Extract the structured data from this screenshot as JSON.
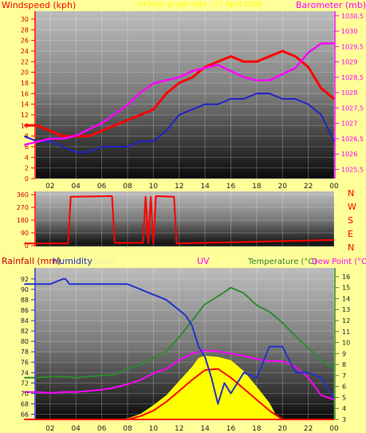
{
  "colors": {
    "background": "#ffff99",
    "wind": "#ff0000",
    "windAvg": "#2222cc",
    "barometer": "#ff00ff",
    "direction": "#ff0000",
    "humidity": "#2233cc",
    "uv": "#ff0000",
    "solar": "#ffff00",
    "temperature": "#2f8a2f",
    "dewpoint": "#ff00ff",
    "rainfall": "#ff0000"
  },
  "top": {
    "left_title": "Windspeed (kph)",
    "right_title": "Barometer (mb)",
    "center_title": "24 hour graph data - 17 April 2009"
  },
  "mid": {
    "dir_labels": [
      "N",
      "W",
      "S",
      "E",
      "N"
    ]
  },
  "bottom": {
    "rainfall_title": "Rainfall (mm)",
    "humidity_title": "Humidity",
    "solar_title": "Solar",
    "uv_title": "UV",
    "temp_title": "Temperature (°C)",
    "dew_title": "Dew Point (°C)"
  },
  "chart_data": [
    {
      "type": "line",
      "x_ticks": [
        "02",
        "04",
        "06",
        "08",
        "10",
        "12",
        "14",
        "16",
        "18",
        "20",
        "22",
        "00"
      ],
      "y_left": {
        "title": "Windspeed (kph)",
        "ticks": [
          0,
          2,
          4,
          6,
          8,
          10,
          12,
          14,
          16,
          18,
          20,
          22,
          24,
          26,
          28,
          30
        ],
        "range": [
          0,
          31.5
        ]
      },
      "y_right": {
        "title": "Barometer (mb)",
        "ticks": [
          1025.5,
          1026,
          1026.5,
          1027,
          1027.5,
          1028,
          1028.5,
          1029,
          1029.5,
          1030,
          1030.5
        ],
        "range": [
          1025.2,
          1030.65
        ]
      },
      "series": [
        {
          "label": "gust",
          "x": [
            0,
            1,
            2,
            3,
            4,
            5,
            6,
            7,
            8,
            9,
            10,
            11,
            12,
            13,
            14,
            15,
            16,
            17,
            18,
            19,
            20,
            21,
            22,
            23,
            24
          ],
          "values": [
            10,
            10,
            9,
            8,
            8,
            8,
            9,
            10,
            11,
            12,
            13,
            16,
            18,
            19,
            21,
            22,
            23,
            22,
            22,
            23,
            24,
            23,
            21,
            17,
            15
          ]
        },
        {
          "label": "average",
          "x": [
            0,
            1,
            2,
            3,
            4,
            5,
            6,
            7,
            8,
            9,
            10,
            11,
            12,
            13,
            14,
            15,
            16,
            17,
            18,
            19,
            20,
            21,
            22,
            23,
            24
          ],
          "values": [
            8,
            7,
            7,
            6,
            5,
            5,
            6,
            6,
            6,
            7,
            7,
            9,
            12,
            13,
            14,
            14,
            15,
            15,
            16,
            16,
            15,
            15,
            14,
            12,
            7
          ]
        },
        {
          "label": "barometer",
          "x": [
            0,
            1,
            2,
            3,
            4,
            5,
            6,
            7,
            8,
            9,
            10,
            11,
            12,
            13,
            14,
            15,
            16,
            17,
            18,
            19,
            20,
            21,
            22,
            23,
            24
          ],
          "values": [
            1026.3,
            1026.4,
            1026.5,
            1026.5,
            1026.6,
            1026.8,
            1027.0,
            1027.3,
            1027.6,
            1028.0,
            1028.3,
            1028.4,
            1028.5,
            1028.7,
            1028.8,
            1028.9,
            1028.7,
            1028.5,
            1028.4,
            1028.4,
            1028.6,
            1028.8,
            1029.3,
            1029.6,
            1029.6
          ]
        }
      ]
    },
    {
      "type": "line",
      "x_ticks": [
        "02",
        "04",
        "06",
        "08",
        "10",
        "12",
        "14",
        "16",
        "18",
        "20",
        "22",
        "00"
      ],
      "y_left": {
        "ticks": [
          0,
          90,
          180,
          270,
          360
        ],
        "range": [
          0,
          372
        ]
      },
      "y_right": {
        "ticks": [
          "N",
          "W",
          "S",
          "E",
          "N"
        ]
      },
      "series": [
        {
          "label": "direction",
          "x": [
            0,
            3.4,
            3.6,
            6.8,
            7.0,
            9.2,
            9.4,
            9.6,
            9.8,
            10.0,
            10.2,
            11.6,
            11.8,
            24
          ],
          "values": [
            15,
            15,
            345,
            350,
            20,
            20,
            345,
            15,
            345,
            15,
            350,
            345,
            15,
            40
          ]
        }
      ]
    },
    {
      "type": "line",
      "x_ticks": [
        "02",
        "04",
        "06",
        "08",
        "10",
        "12",
        "14",
        "16",
        "18",
        "20",
        "22",
        "00"
      ],
      "y_left": {
        "title": "Humidity",
        "ticks": [
          66,
          68,
          70,
          72,
          74,
          76,
          78,
          80,
          82,
          84,
          86,
          88,
          90,
          92
        ],
        "range": [
          65,
          93.5
        ]
      },
      "y_right": {
        "title": "Temperature (°C)",
        "ticks": [
          3,
          4,
          5,
          6,
          7,
          8,
          9,
          10,
          11,
          12,
          13,
          14,
          15,
          16
        ],
        "range": [
          3,
          16.5
        ]
      },
      "series": [
        {
          "label": "humidity",
          "x": [
            0,
            2,
            3,
            3.2,
            3.5,
            5,
            8,
            9,
            10,
            11,
            12,
            12.5,
            13,
            13.5,
            14,
            14.5,
            15,
            15.5,
            16,
            17,
            18,
            19,
            20,
            21,
            22,
            23,
            24
          ],
          "values": [
            91,
            91,
            92,
            92,
            91,
            91,
            91,
            90,
            89,
            88,
            86,
            85,
            83,
            79,
            77,
            73,
            68,
            72,
            70,
            74,
            73,
            79,
            79,
            74,
            74,
            73,
            69
          ]
        },
        {
          "label": "temperature",
          "x": [
            0,
            1,
            2,
            3,
            4,
            5,
            6,
            7,
            8,
            9,
            10,
            11,
            12,
            13,
            14,
            15,
            16,
            17,
            18,
            19,
            20,
            21,
            22,
            23,
            24
          ],
          "values": [
            6.8,
            6.8,
            6.9,
            6.9,
            6.8,
            6.9,
            7.0,
            7.1,
            7.6,
            8.0,
            8.6,
            9.2,
            10.5,
            12.0,
            13.5,
            14.2,
            15.0,
            14.5,
            13.4,
            12.8,
            11.8,
            10.6,
            9.5,
            8.4,
            7.6
          ]
        },
        {
          "label": "dew point",
          "x": [
            0,
            1,
            2,
            3,
            4,
            5,
            6,
            7,
            8,
            9,
            10,
            11,
            12,
            13,
            14,
            15,
            16,
            17,
            18,
            19,
            20,
            21,
            22,
            23,
            24
          ],
          "values": [
            5.5,
            5.5,
            5.4,
            5.5,
            5.5,
            5.6,
            5.7,
            5.9,
            6.2,
            6.6,
            7.2,
            7.6,
            8.4,
            9.0,
            9.3,
            9.2,
            9.0,
            8.8,
            8.5,
            8.3,
            8.3,
            7.8,
            6.8,
            5.2,
            4.8
          ]
        },
        {
          "label": "solar",
          "x": [
            0,
            6.5,
            7,
            8,
            9,
            10,
            11,
            12,
            13,
            13.5,
            14,
            15,
            16,
            17,
            18,
            19,
            19.5,
            20,
            24
          ],
          "values": [
            3,
            3,
            3,
            3.1,
            3.5,
            4.3,
            5.2,
            6.5,
            7.8,
            8.6,
            8.8,
            8.7,
            8.4,
            7.4,
            6.0,
            4.5,
            3.4,
            3,
            3
          ]
        },
        {
          "label": "uv",
          "x": [
            0,
            8,
            9,
            10,
            11,
            12,
            13,
            14,
            15,
            16,
            17,
            18,
            19,
            20,
            24
          ],
          "values": [
            3,
            3,
            3.3,
            3.8,
            4.6,
            5.6,
            6.6,
            7.5,
            7.6,
            6.8,
            5.8,
            4.8,
            3.8,
            3,
            3
          ]
        },
        {
          "label": "rainfall",
          "x": [
            0,
            24
          ],
          "values": [
            3,
            3
          ]
        }
      ]
    }
  ]
}
